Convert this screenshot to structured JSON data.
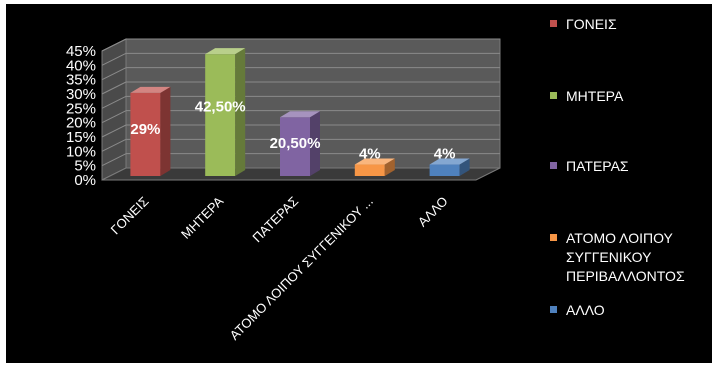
{
  "chart_data": {
    "type": "bar",
    "title": "",
    "xlabel": "",
    "ylabel": "",
    "ylim": [
      0,
      45
    ],
    "yticks": [
      "0%",
      "5%",
      "10%",
      "15%",
      "20%",
      "25%",
      "30%",
      "35%",
      "40%",
      "45%"
    ],
    "categories": [
      "ΓΟΝΕΙΣ",
      "ΜΗΤΕΡΑ",
      "ΠΑΤΕΡΑΣ",
      "ΑΤΟΜΟ ΛΟΙΠΟΥ ΣΥΓΓΕΝΙΚΟΥ ...",
      "ΑΛΛΟ"
    ],
    "values": [
      29,
      42.5,
      20.5,
      4,
      4
    ],
    "data_labels": [
      "29%",
      "42,50%",
      "20,50%",
      "4%",
      "4%"
    ],
    "colors": [
      "#c0504d",
      "#9bbb59",
      "#8064a2",
      "#f79646",
      "#4f81bd"
    ],
    "grid": true,
    "three_d": true,
    "legend_position": "right",
    "legend": [
      {
        "lines": [
          "ΓΟΝΕΙΣ"
        ]
      },
      {
        "lines": [
          "ΜΗΤΕΡΑ"
        ]
      },
      {
        "lines": [
          "ΠΑΤΕΡΑΣ"
        ]
      },
      {
        "lines": [
          "ΑΤΟΜΟ ΛΟΙΠΟΥ",
          "ΣΥΓΓΕΝΙΚΟΥ",
          "ΠΕΡΙΒΑΛΛΟΝΤΟΣ"
        ]
      },
      {
        "lines": [
          "ΑΛΛΟ"
        ]
      }
    ]
  }
}
